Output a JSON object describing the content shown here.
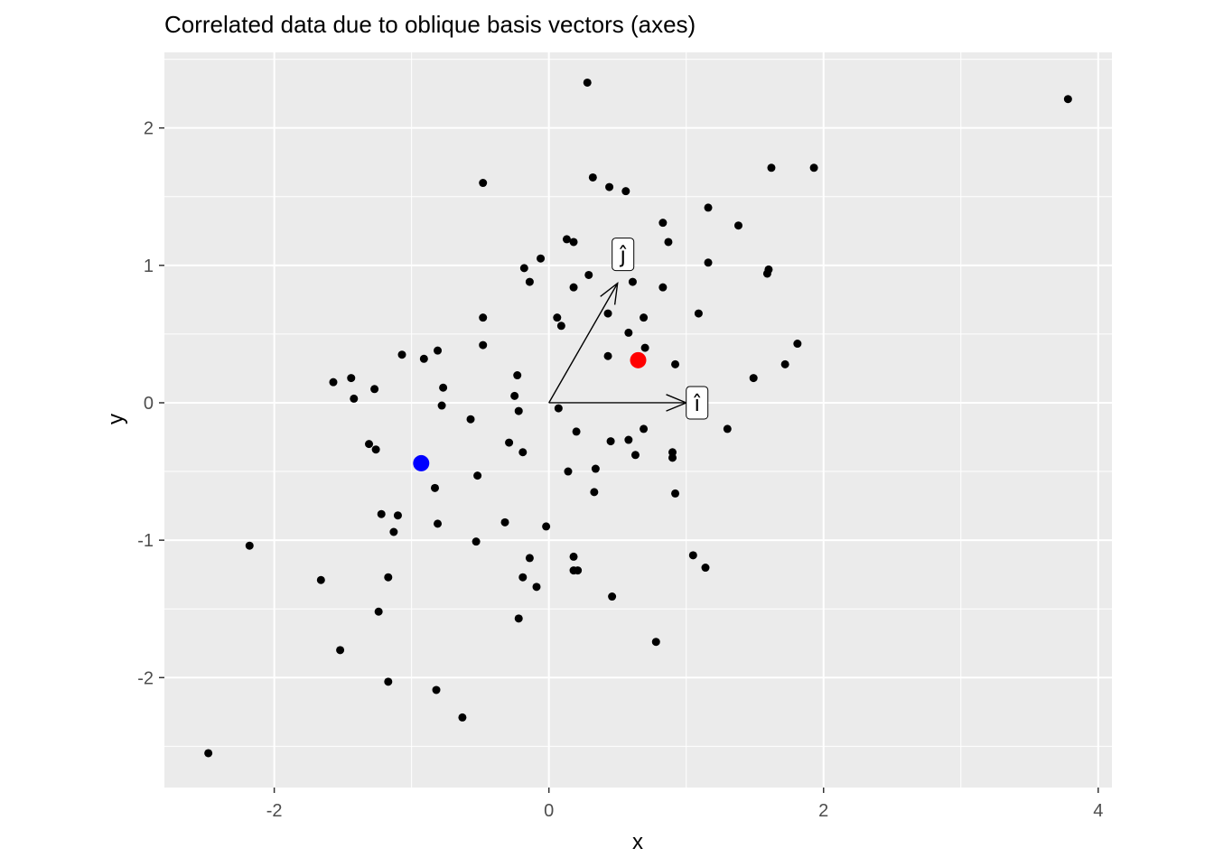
{
  "chart_data": {
    "type": "scatter",
    "title": "Correlated data due to oblique basis vectors (axes)",
    "xlabel": "x",
    "ylabel": "y",
    "xlim": [
      -2.8,
      4.1
    ],
    "ylim": [
      -2.8,
      2.55
    ],
    "grid": true,
    "x_ticks": [
      -2,
      0,
      2,
      4
    ],
    "x_tick_labels": [
      "-2",
      "0",
      "2",
      "4"
    ],
    "y_ticks": [
      -2,
      -1,
      0,
      1,
      2
    ],
    "y_tick_labels": [
      "-2",
      "-1",
      "0",
      "1",
      "2"
    ],
    "point_color": "#000000",
    "points": [
      [
        0.28,
        2.33
      ],
      [
        3.78,
        2.21
      ],
      [
        1.93,
        1.71
      ],
      [
        1.62,
        1.71
      ],
      [
        0.32,
        1.64
      ],
      [
        0.44,
        1.57
      ],
      [
        0.56,
        1.54
      ],
      [
        -0.48,
        1.6
      ],
      [
        1.16,
        1.42
      ],
      [
        1.38,
        1.29
      ],
      [
        0.83,
        1.31
      ],
      [
        0.87,
        1.17
      ],
      [
        0.13,
        1.19
      ],
      [
        0.18,
        1.17
      ],
      [
        -0.06,
        1.05
      ],
      [
        -0.18,
        0.98
      ],
      [
        1.16,
        1.02
      ],
      [
        1.6,
        0.97
      ],
      [
        1.59,
        0.94
      ],
      [
        0.29,
        0.93
      ],
      [
        -0.14,
        0.88
      ],
      [
        0.61,
        0.88
      ],
      [
        0.18,
        0.84
      ],
      [
        0.83,
        0.84
      ],
      [
        1.09,
        0.65
      ],
      [
        0.43,
        0.65
      ],
      [
        0.06,
        0.62
      ],
      [
        0.69,
        0.62
      ],
      [
        -0.48,
        0.62
      ],
      [
        0.09,
        0.56
      ],
      [
        0.58,
        0.51
      ],
      [
        -0.48,
        0.42
      ],
      [
        1.81,
        0.43
      ],
      [
        0.7,
        0.4
      ],
      [
        -0.81,
        0.38
      ],
      [
        -1.07,
        0.35
      ],
      [
        -0.91,
        0.32
      ],
      [
        0.43,
        0.34
      ],
      [
        0.92,
        0.28
      ],
      [
        1.72,
        0.28
      ],
      [
        -0.23,
        0.2
      ],
      [
        1.49,
        0.18
      ],
      [
        -1.44,
        0.18
      ],
      [
        -1.57,
        0.15
      ],
      [
        -0.77,
        0.11
      ],
      [
        -1.27,
        0.1
      ],
      [
        -0.25,
        0.05
      ],
      [
        -1.42,
        0.03
      ],
      [
        -0.78,
        -0.02
      ],
      [
        0.07,
        -0.04
      ],
      [
        -0.22,
        -0.06
      ],
      [
        -0.57,
        -0.12
      ],
      [
        0.69,
        -0.19
      ],
      [
        1.3,
        -0.19
      ],
      [
        0.2,
        -0.21
      ],
      [
        0.58,
        -0.27
      ],
      [
        0.45,
        -0.28
      ],
      [
        -0.29,
        -0.29
      ],
      [
        -1.31,
        -0.3
      ],
      [
        -1.26,
        -0.34
      ],
      [
        -0.19,
        -0.36
      ],
      [
        0.9,
        -0.36
      ],
      [
        0.63,
        -0.38
      ],
      [
        0.9,
        -0.4
      ],
      [
        0.34,
        -0.48
      ],
      [
        0.14,
        -0.5
      ],
      [
        -0.52,
        -0.53
      ],
      [
        -0.83,
        -0.62
      ],
      [
        0.33,
        -0.65
      ],
      [
        0.92,
        -0.66
      ],
      [
        -1.22,
        -0.81
      ],
      [
        -1.1,
        -0.82
      ],
      [
        -0.32,
        -0.87
      ],
      [
        -0.81,
        -0.88
      ],
      [
        -0.02,
        -0.9
      ],
      [
        -1.13,
        -0.94
      ],
      [
        -2.18,
        -1.04
      ],
      [
        -0.53,
        -1.01
      ],
      [
        1.05,
        -1.11
      ],
      [
        0.18,
        -1.12
      ],
      [
        -0.14,
        -1.13
      ],
      [
        1.14,
        -1.2
      ],
      [
        0.18,
        -1.22
      ],
      [
        0.21,
        -1.22
      ],
      [
        -0.19,
        -1.27
      ],
      [
        -1.17,
        -1.27
      ],
      [
        -1.66,
        -1.29
      ],
      [
        -0.09,
        -1.34
      ],
      [
        0.46,
        -1.41
      ],
      [
        -1.24,
        -1.52
      ],
      [
        -0.22,
        -1.57
      ],
      [
        0.78,
        -1.74
      ],
      [
        -1.52,
        -1.8
      ],
      [
        -1.17,
        -2.03
      ],
      [
        -0.82,
        -2.09
      ],
      [
        -0.63,
        -2.29
      ],
      [
        -2.48,
        -2.55
      ]
    ],
    "highlight_points": [
      {
        "color": "#ff0000",
        "x": 0.65,
        "y": 0.31
      },
      {
        "color": "#0000ff",
        "x": -0.93,
        "y": -0.44
      }
    ],
    "basis_vectors": [
      {
        "label": "î",
        "from": [
          0,
          0
        ],
        "to": [
          1,
          0
        ]
      },
      {
        "label": "ĵ",
        "from": [
          0,
          0
        ],
        "to": [
          0.5,
          0.87
        ]
      }
    ]
  }
}
